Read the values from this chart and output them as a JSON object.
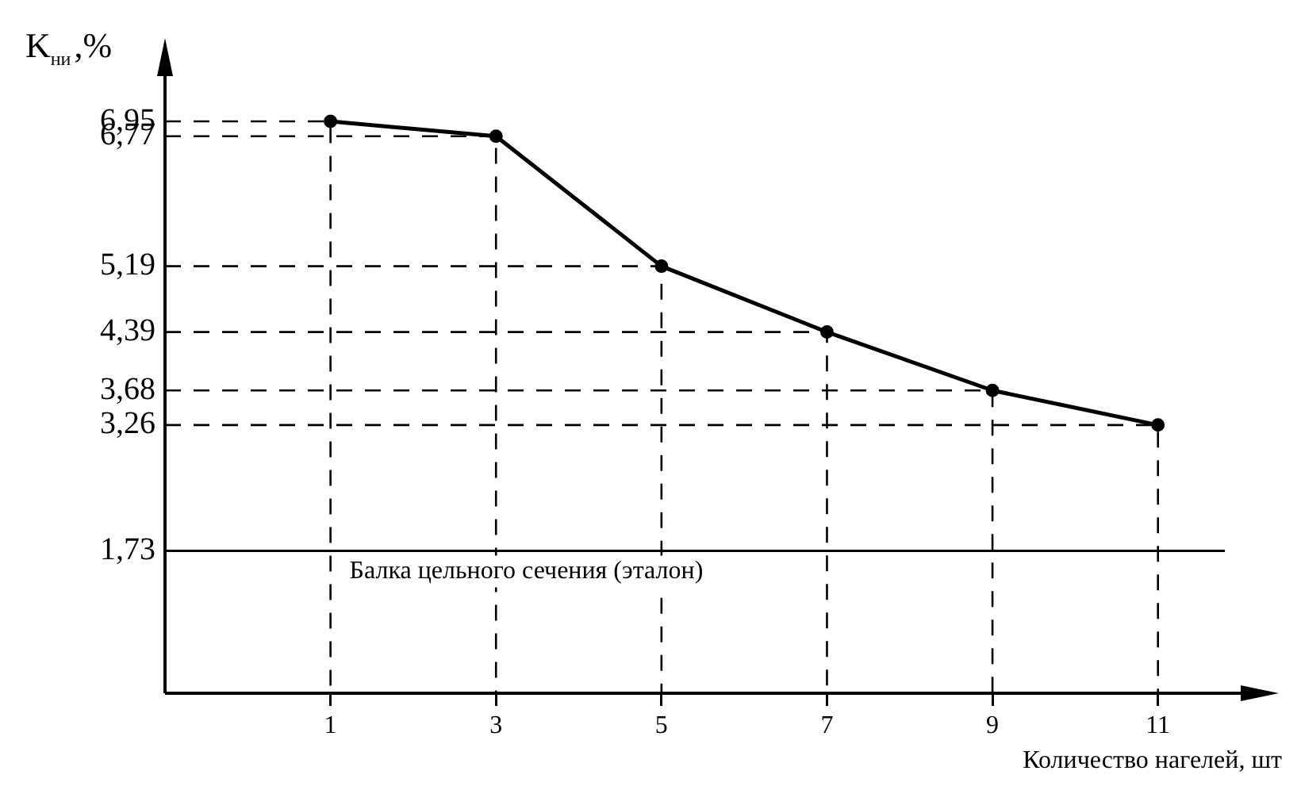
{
  "chart_data": {
    "type": "line",
    "xlabel": "Количество нагелей, шт",
    "ylabel": "K$_{ни}$,%",
    "x": [
      1,
      3,
      5,
      7,
      9,
      11
    ],
    "series": [
      {
        "color": "#000000",
        "values": [
          6.95,
          6.77,
          5.19,
          4.39,
          3.68,
          3.26
        ]
      },
      {
        "type": "line",
        "color": "#000000",
        "line_style": "dashed",
        "marker": "none",
        "x": [
          -1,
          1,
          1
        ],
        "values": [
          6.95,
          6.95,
          0
        ]
      },
      {
        "type": "line",
        "color": "#000000",
        "line_style": "dashed",
        "marker": "none",
        "x": [
          -1,
          3,
          3
        ],
        "values": [
          6.77,
          6.77,
          0
        ]
      },
      {
        "type": "line",
        "color": "#000000",
        "line_style": "dashed",
        "marker": "none",
        "x": [
          -1,
          5,
          5
        ],
        "values": [
          5.19,
          5.19,
          0
        ]
      },
      {
        "type": "line",
        "color": "#000000",
        "line_style": "dashed",
        "marker": "none",
        "x": [
          -1,
          7,
          7
        ],
        "values": [
          4.39,
          4.39,
          0
        ]
      },
      {
        "type": "line",
        "color": "#000000",
        "line_style": "dashed",
        "marker": "none",
        "x": [
          -1,
          9,
          9
        ],
        "values": [
          3.68,
          3.68,
          0
        ]
      },
      {
        "type": "line",
        "color": "#000000",
        "line_style": "dashed",
        "marker": "none",
        "x": [
          -1,
          11,
          11
        ],
        "values": [
          3.26,
          3.26,
          0
        ]
      }
    ],
    "xlim": [
      -1,
      12
    ],
    "xticks": [
      1,
      3,
      5,
      7,
      9,
      11
    ],
    "ylim": [
      0,
      7.5
    ],
    "yticks": [
      {
        "value": 1.73,
        "label": "1,73"
      },
      {
        "value": 3.26,
        "label": "3,26"
      },
      {
        "value": 3.68,
        "label": "3,68"
      },
      {
        "value": 4.39,
        "label": "4,39"
      },
      {
        "value": 5.19,
        "label": "5,19"
      },
      {
        "value": 6.77,
        "label": "6,77"
      },
      {
        "value": 6.95,
        "label": "6,95"
      }
    ],
    "ref_lines": [
      {
        "axis": "y",
        "value": 1.73,
        "label": "Балка цельного сечения (эталон)",
        "color": "#000000",
        "line_style": "solid"
      }
    ],
    "grid": false,
    "legend": false,
    "marker": "circle",
    "line_style": "solid"
  }
}
